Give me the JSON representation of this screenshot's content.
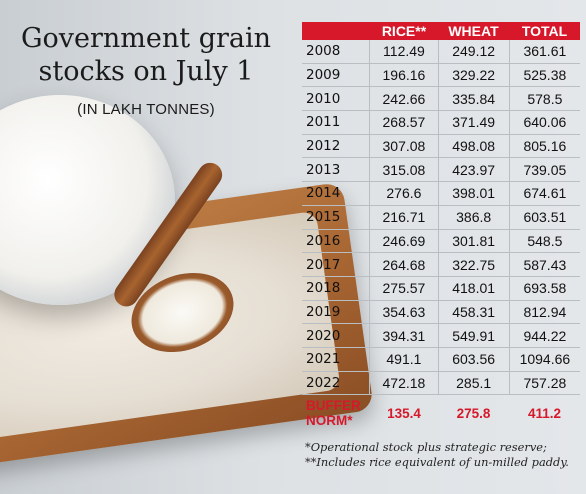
{
  "title_line1": "Government grain",
  "title_line2": "stocks on July 1",
  "subtitle": "(IN LAKH TONNES)",
  "colors": {
    "header_bg": "#d7182a",
    "buffer_text": "#d7182a"
  },
  "table": {
    "headers": [
      "",
      "RICE**",
      "WHEAT",
      "TOTAL"
    ],
    "rows": [
      [
        "2008",
        "112.49",
        "249.12",
        "361.61"
      ],
      [
        "2009",
        "196.16",
        "329.22",
        "525.38"
      ],
      [
        "2010",
        "242.66",
        "335.84",
        "578.5"
      ],
      [
        "2011",
        "268.57",
        "371.49",
        "640.06"
      ],
      [
        "2012",
        "307.08",
        "498.08",
        "805.16"
      ],
      [
        "2013",
        "315.08",
        "423.97",
        "739.05"
      ],
      [
        "2014",
        "276.6",
        "398.01",
        "674.61"
      ],
      [
        "2015",
        "216.71",
        "386.8",
        "603.51"
      ],
      [
        "2016",
        "246.69",
        "301.81",
        "548.5"
      ],
      [
        "2017",
        "264.68",
        "322.75",
        "587.43"
      ],
      [
        "2018",
        "275.57",
        "418.01",
        "693.58"
      ],
      [
        "2019",
        "354.63",
        "458.31",
        "812.94"
      ],
      [
        "2020",
        "394.31",
        "549.91",
        "944.22"
      ],
      [
        "2021",
        "491.1",
        "603.56",
        "1094.66"
      ],
      [
        "2022",
        "472.18",
        "285.1",
        "757.28"
      ]
    ],
    "buffer": {
      "label_line1": "BUFFER",
      "label_line2": "NORM*",
      "rice": "135.4",
      "wheat": "275.8",
      "total": "411.2"
    }
  },
  "notes": [
    "*Operational stock plus strategic reserve;",
    "**Includes rice equivalent of un-milled paddy."
  ]
}
